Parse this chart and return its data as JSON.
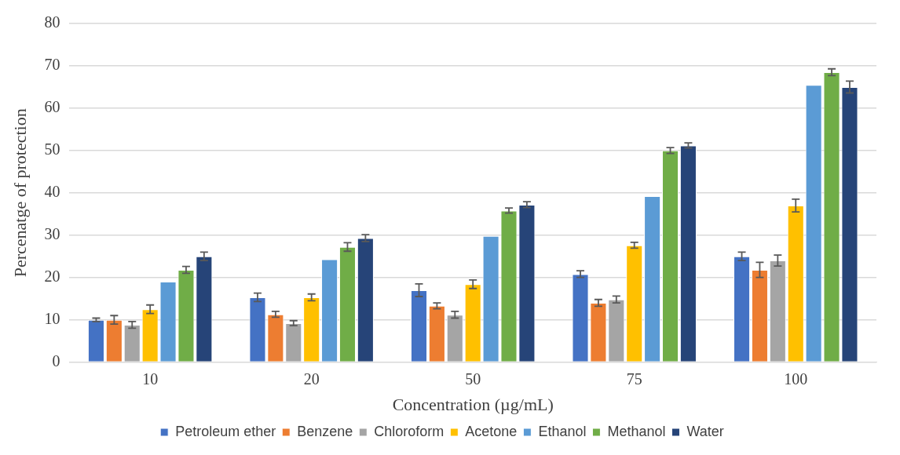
{
  "chart_data": {
    "type": "bar",
    "xlabel": "Concentration (µg/mL)",
    "ylabel": "Percenatge of protection",
    "categories": [
      "10",
      "20",
      "50",
      "75",
      "100"
    ],
    "series": [
      {
        "name": "Petroleum ether",
        "color": "#4472c4",
        "values": [
          10,
          15.3,
          17,
          20.8,
          25
        ],
        "errors": [
          0.4,
          1,
          1.5,
          0.8,
          1
        ]
      },
      {
        "name": "Benzene",
        "color": "#ed7d31",
        "values": [
          10,
          11.3,
          13.3,
          14,
          21.8
        ],
        "errors": [
          1,
          0.7,
          0.7,
          0.8,
          1.8
        ]
      },
      {
        "name": "Chloroform",
        "color": "#a5a5a5",
        "values": [
          8.8,
          9.2,
          11.2,
          14.8,
          24
        ],
        "errors": [
          0.8,
          0.6,
          0.8,
          0.8,
          1.3
        ]
      },
      {
        "name": "Acetone",
        "color": "#ffc000",
        "values": [
          12.5,
          15.3,
          18.4,
          27.6,
          37
        ],
        "errors": [
          1,
          0.8,
          1,
          0.7,
          1.5
        ]
      },
      {
        "name": "Ethanol",
        "color": "#5b9bd5",
        "values": [
          19,
          24.3,
          29.8,
          39.2,
          65.5
        ]
      },
      {
        "name": "Methanol",
        "color": "#70ad47",
        "values": [
          21.8,
          27.2,
          35.8,
          50,
          68.5
        ],
        "errors": [
          0.8,
          1,
          0.6,
          0.7,
          0.8
        ]
      },
      {
        "name": "Water",
        "color": "#264478",
        "values": [
          25,
          29.3,
          37.2,
          51.2,
          65
        ],
        "errors": [
          1,
          0.8,
          0.7,
          0.6,
          1.4
        ]
      }
    ],
    "ylim": [
      0,
      80
    ],
    "yticks": [
      0,
      10,
      20,
      30,
      40,
      50,
      60,
      70,
      80
    ],
    "grid": "y",
    "legend": "bottom"
  }
}
